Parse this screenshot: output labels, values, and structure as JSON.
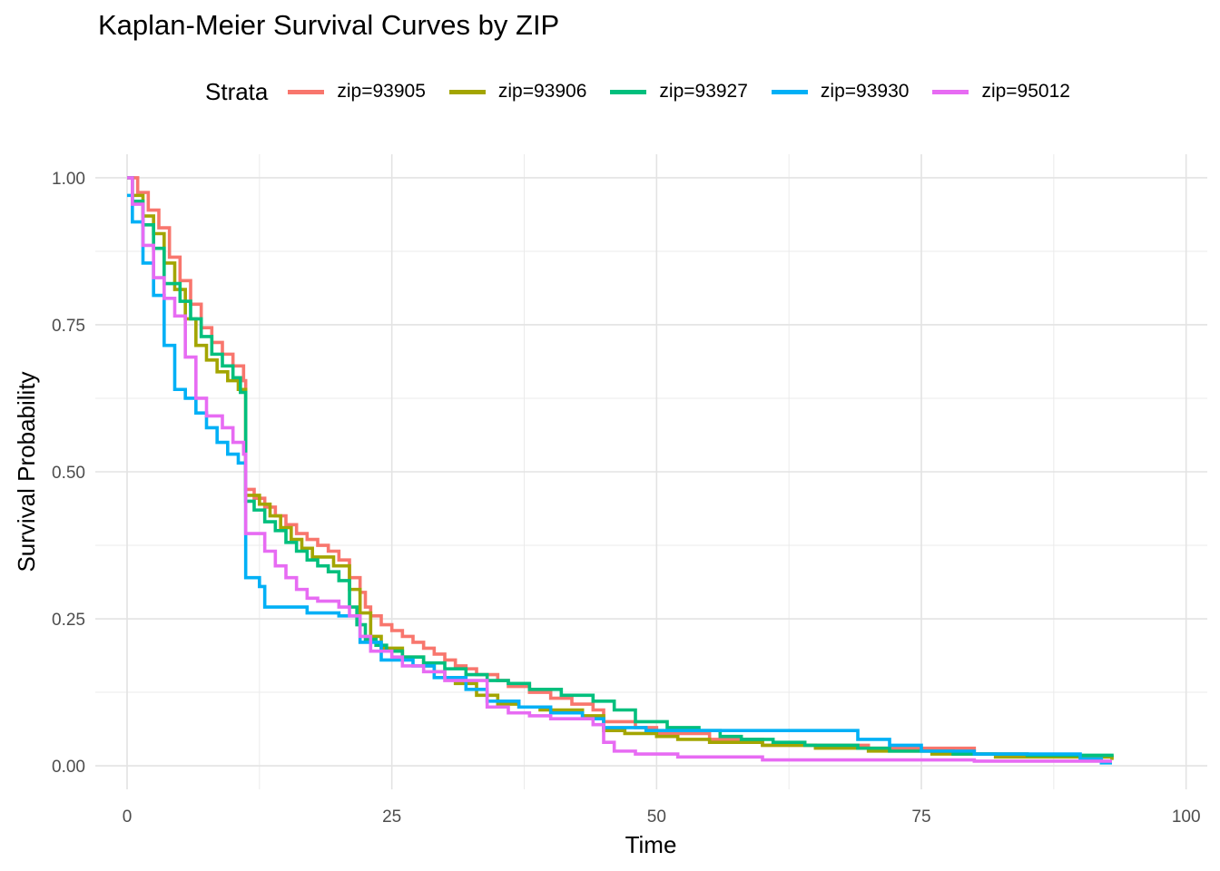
{
  "chart_data": {
    "type": "line",
    "title": "Kaplan-Meier Survival Curves by ZIP",
    "xlabel": "Time",
    "ylabel": "Survival Probability",
    "xlim": [
      -3,
      102
    ],
    "ylim": [
      -0.04,
      1.04
    ],
    "x_ticks": [
      0,
      25,
      50,
      75,
      100
    ],
    "y_ticks": [
      0,
      0.25,
      0.5,
      0.75,
      1.0
    ],
    "x_tick_labels": [
      "0",
      "25",
      "50",
      "75",
      "100"
    ],
    "y_tick_labels": [
      "0.00",
      "0.25",
      "0.50",
      "0.75",
      "1.00"
    ],
    "grid": true,
    "legend_title": "Strata",
    "legend_position": "top",
    "series": [
      {
        "name": "zip=93905",
        "color": "#F8766D",
        "points": [
          [
            0,
            1.0
          ],
          [
            1,
            0.975
          ],
          [
            2,
            0.945
          ],
          [
            3,
            0.915
          ],
          [
            4,
            0.865
          ],
          [
            5,
            0.825
          ],
          [
            6,
            0.785
          ],
          [
            7,
            0.745
          ],
          [
            8,
            0.72
          ],
          [
            9,
            0.7
          ],
          [
            10,
            0.68
          ],
          [
            11,
            0.655
          ],
          [
            11.2,
            0.47
          ],
          [
            12,
            0.455
          ],
          [
            13,
            0.44
          ],
          [
            14,
            0.425
          ],
          [
            15,
            0.41
          ],
          [
            16,
            0.395
          ],
          [
            17,
            0.385
          ],
          [
            18,
            0.375
          ],
          [
            19,
            0.365
          ],
          [
            20,
            0.35
          ],
          [
            21,
            0.32
          ],
          [
            22,
            0.295
          ],
          [
            22.5,
            0.27
          ],
          [
            23,
            0.255
          ],
          [
            24,
            0.24
          ],
          [
            25,
            0.23
          ],
          [
            26,
            0.22
          ],
          [
            27,
            0.21
          ],
          [
            28,
            0.2
          ],
          [
            29,
            0.19
          ],
          [
            30,
            0.18
          ],
          [
            31,
            0.17
          ],
          [
            32,
            0.165
          ],
          [
            33,
            0.155
          ],
          [
            35,
            0.145
          ],
          [
            36,
            0.135
          ],
          [
            38,
            0.125
          ],
          [
            40,
            0.115
          ],
          [
            42,
            0.105
          ],
          [
            44,
            0.095
          ],
          [
            45,
            0.075
          ],
          [
            48,
            0.065
          ],
          [
            50,
            0.055
          ],
          [
            55,
            0.045
          ],
          [
            60,
            0.035
          ],
          [
            70,
            0.03
          ],
          [
            80,
            0.02
          ],
          [
            85,
            0.018
          ],
          [
            90,
            0.015
          ],
          [
            93,
            0.012
          ]
        ]
      },
      {
        "name": "zip=93906",
        "color": "#A3A500",
        "points": [
          [
            0,
            1.0
          ],
          [
            0.5,
            0.97
          ],
          [
            1.5,
            0.935
          ],
          [
            2.5,
            0.905
          ],
          [
            3.5,
            0.855
          ],
          [
            4.5,
            0.81
          ],
          [
            5.5,
            0.76
          ],
          [
            6.5,
            0.715
          ],
          [
            7.5,
            0.69
          ],
          [
            8.5,
            0.67
          ],
          [
            9.5,
            0.655
          ],
          [
            10.5,
            0.64
          ],
          [
            11.2,
            0.46
          ],
          [
            12.5,
            0.445
          ],
          [
            13.5,
            0.425
          ],
          [
            14.5,
            0.405
          ],
          [
            15.5,
            0.385
          ],
          [
            16.5,
            0.37
          ],
          [
            17.5,
            0.355
          ],
          [
            19.5,
            0.34
          ],
          [
            21,
            0.3
          ],
          [
            22,
            0.26
          ],
          [
            23,
            0.22
          ],
          [
            24,
            0.2
          ],
          [
            26,
            0.185
          ],
          [
            28,
            0.17
          ],
          [
            29,
            0.16
          ],
          [
            30,
            0.15
          ],
          [
            31,
            0.14
          ],
          [
            33,
            0.12
          ],
          [
            35,
            0.105
          ],
          [
            37,
            0.1
          ],
          [
            39,
            0.095
          ],
          [
            43,
            0.085
          ],
          [
            45,
            0.06
          ],
          [
            47,
            0.055
          ],
          [
            50,
            0.05
          ],
          [
            52,
            0.045
          ],
          [
            55,
            0.04
          ],
          [
            60,
            0.035
          ],
          [
            65,
            0.03
          ],
          [
            70,
            0.025
          ],
          [
            76,
            0.02
          ],
          [
            82,
            0.015
          ],
          [
            93,
            0.01
          ]
        ]
      },
      {
        "name": "zip=93927",
        "color": "#00BF7D",
        "points": [
          [
            0,
            1.0
          ],
          [
            0.5,
            0.96
          ],
          [
            1.5,
            0.92
          ],
          [
            2.5,
            0.88
          ],
          [
            3.5,
            0.82
          ],
          [
            5,
            0.79
          ],
          [
            6,
            0.76
          ],
          [
            7,
            0.73
          ],
          [
            8,
            0.7
          ],
          [
            9,
            0.68
          ],
          [
            10,
            0.66
          ],
          [
            10.7,
            0.635
          ],
          [
            11.2,
            0.45
          ],
          [
            12,
            0.435
          ],
          [
            13,
            0.415
          ],
          [
            14,
            0.4
          ],
          [
            15,
            0.38
          ],
          [
            16,
            0.365
          ],
          [
            17,
            0.35
          ],
          [
            18,
            0.34
          ],
          [
            19,
            0.33
          ],
          [
            20,
            0.315
          ],
          [
            21,
            0.27
          ],
          [
            21.7,
            0.24
          ],
          [
            22.5,
            0.215
          ],
          [
            23.5,
            0.205
          ],
          [
            24.5,
            0.195
          ],
          [
            26,
            0.185
          ],
          [
            28,
            0.175
          ],
          [
            30,
            0.165
          ],
          [
            32,
            0.155
          ],
          [
            34,
            0.145
          ],
          [
            36,
            0.14
          ],
          [
            38,
            0.13
          ],
          [
            41,
            0.12
          ],
          [
            44,
            0.11
          ],
          [
            46,
            0.095
          ],
          [
            48,
            0.075
          ],
          [
            51,
            0.065
          ],
          [
            54,
            0.06
          ],
          [
            56,
            0.05
          ],
          [
            58,
            0.045
          ],
          [
            61,
            0.04
          ],
          [
            64,
            0.035
          ],
          [
            69,
            0.03
          ],
          [
            72,
            0.025
          ],
          [
            78,
            0.02
          ],
          [
            85,
            0.018
          ],
          [
            93,
            0.015
          ]
        ]
      },
      {
        "name": "zip=93930",
        "color": "#00B0F6",
        "points": [
          [
            0,
            0.97
          ],
          [
            0.5,
            0.925
          ],
          [
            1.5,
            0.855
          ],
          [
            2.5,
            0.8
          ],
          [
            3.5,
            0.715
          ],
          [
            4.5,
            0.64
          ],
          [
            5.5,
            0.625
          ],
          [
            6.5,
            0.6
          ],
          [
            7.5,
            0.575
          ],
          [
            8.5,
            0.55
          ],
          [
            9.5,
            0.53
          ],
          [
            10.5,
            0.515
          ],
          [
            11.2,
            0.32
          ],
          [
            12.5,
            0.305
          ],
          [
            13,
            0.27
          ],
          [
            17,
            0.26
          ],
          [
            20,
            0.255
          ],
          [
            22,
            0.21
          ],
          [
            24,
            0.18
          ],
          [
            27,
            0.17
          ],
          [
            29,
            0.15
          ],
          [
            32,
            0.13
          ],
          [
            34,
            0.11
          ],
          [
            37,
            0.1
          ],
          [
            40,
            0.09
          ],
          [
            43,
            0.08
          ],
          [
            45,
            0.065
          ],
          [
            49,
            0.06
          ],
          [
            55,
            0.06
          ],
          [
            65,
            0.06
          ],
          [
            69,
            0.045
          ],
          [
            72,
            0.035
          ],
          [
            75,
            0.025
          ],
          [
            80,
            0.02
          ],
          [
            90,
            0.012
          ],
          [
            92,
            0.005
          ],
          [
            93,
            0.005
          ]
        ]
      },
      {
        "name": "zip=95012",
        "color": "#E76BF3",
        "points": [
          [
            0,
            1.0
          ],
          [
            0.5,
            0.955
          ],
          [
            1.5,
            0.885
          ],
          [
            2.5,
            0.83
          ],
          [
            3.5,
            0.795
          ],
          [
            4.5,
            0.765
          ],
          [
            5.5,
            0.695
          ],
          [
            6.5,
            0.625
          ],
          [
            7.5,
            0.595
          ],
          [
            9,
            0.575
          ],
          [
            10,
            0.55
          ],
          [
            11,
            0.53
          ],
          [
            11.2,
            0.395
          ],
          [
            13,
            0.365
          ],
          [
            14,
            0.34
          ],
          [
            15,
            0.32
          ],
          [
            16,
            0.3
          ],
          [
            17,
            0.285
          ],
          [
            18,
            0.28
          ],
          [
            20,
            0.27
          ],
          [
            21,
            0.255
          ],
          [
            22,
            0.22
          ],
          [
            23,
            0.195
          ],
          [
            25,
            0.185
          ],
          [
            26,
            0.17
          ],
          [
            28,
            0.16
          ],
          [
            30,
            0.145
          ],
          [
            34,
            0.1
          ],
          [
            36,
            0.09
          ],
          [
            38,
            0.085
          ],
          [
            40,
            0.08
          ],
          [
            44,
            0.07
          ],
          [
            45,
            0.04
          ],
          [
            46,
            0.025
          ],
          [
            48,
            0.02
          ],
          [
            52,
            0.015
          ],
          [
            60,
            0.01
          ],
          [
            70,
            0.01
          ],
          [
            80,
            0.008
          ],
          [
            93,
            0.008
          ]
        ]
      }
    ]
  }
}
